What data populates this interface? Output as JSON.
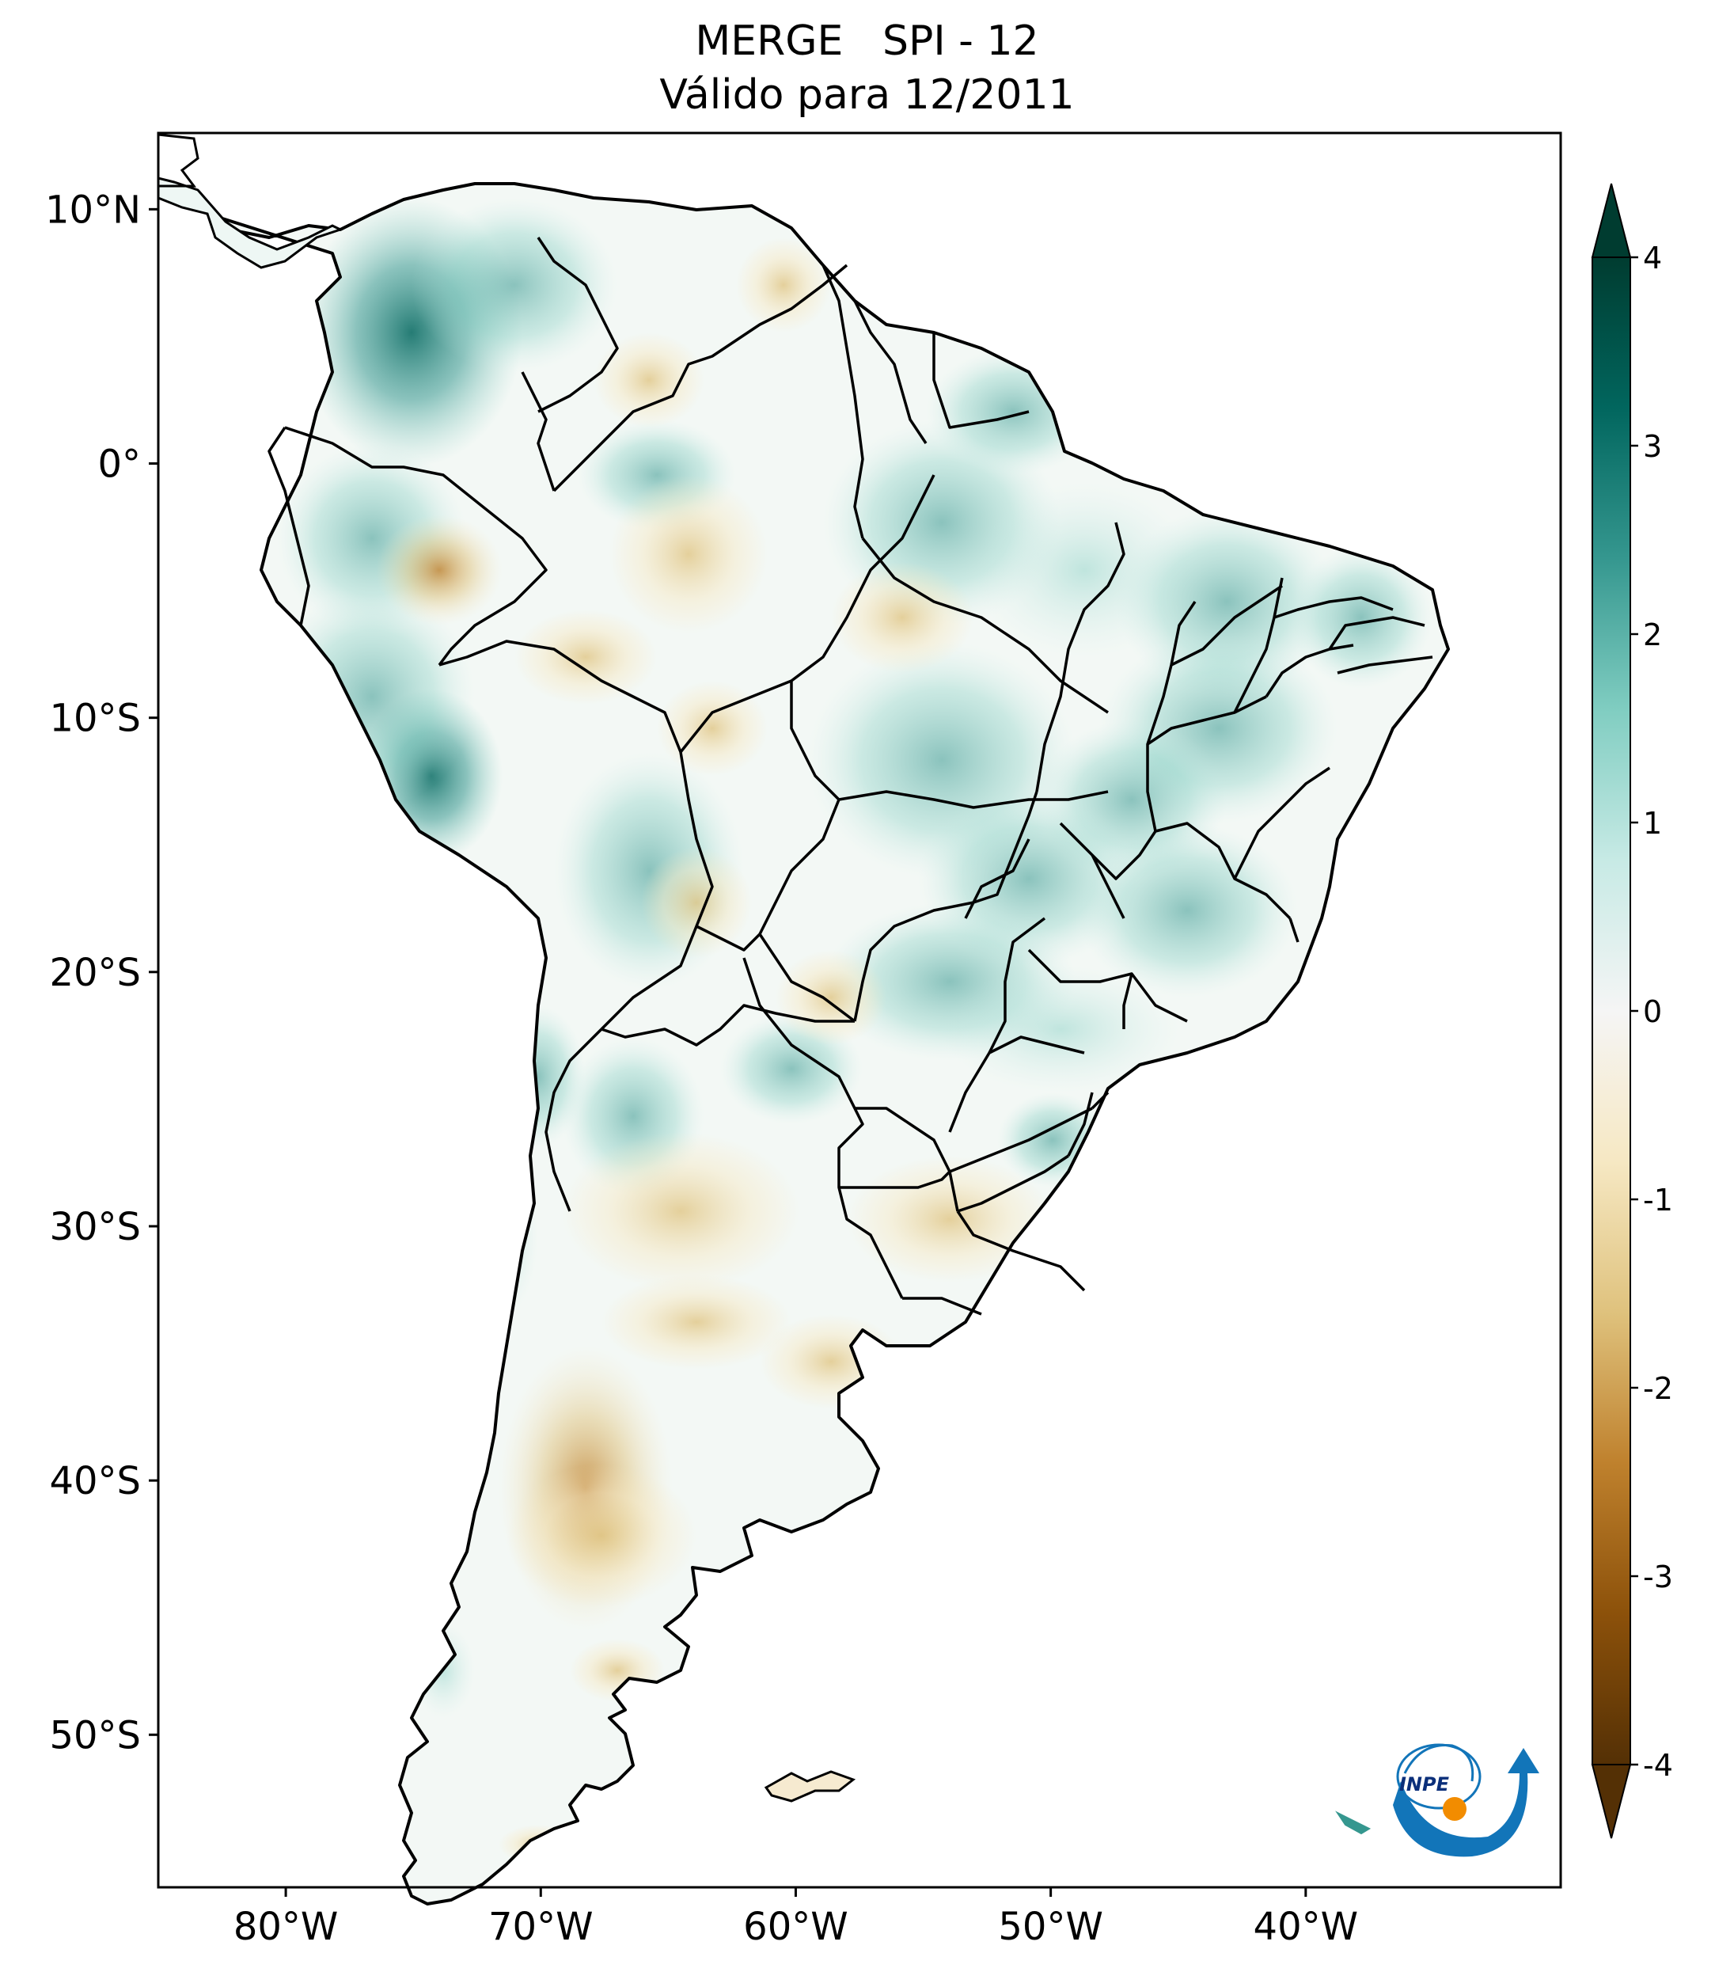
{
  "title": {
    "line1_left": "MERGE",
    "line1_right": "SPI - 12",
    "line2": "Válido para 12/2011"
  },
  "map": {
    "lat_ticks": [
      {
        "value": 10,
        "label": "10°N"
      },
      {
        "value": 0,
        "label": "0°"
      },
      {
        "value": -10,
        "label": "10°S"
      },
      {
        "value": -20,
        "label": "20°S"
      },
      {
        "value": -30,
        "label": "30°S"
      },
      {
        "value": -40,
        "label": "40°S"
      },
      {
        "value": -50,
        "label": "50°S"
      }
    ],
    "lon_ticks": [
      {
        "value": -80,
        "label": "80°W"
      },
      {
        "value": -70,
        "label": "70°W"
      },
      {
        "value": -60,
        "label": "60°W"
      },
      {
        "value": -50,
        "label": "50°W"
      },
      {
        "value": -40,
        "label": "40°W"
      }
    ],
    "extent": {
      "lon_min": -85,
      "lon_max": -30,
      "lat_min": -56,
      "lat_max": 13
    }
  },
  "colorbar": {
    "ticks": [
      {
        "value": 4,
        "label": "4"
      },
      {
        "value": 3,
        "label": "3"
      },
      {
        "value": 2,
        "label": "2"
      },
      {
        "value": 1,
        "label": "1"
      },
      {
        "value": 0,
        "label": "0"
      },
      {
        "value": -1,
        "label": "-1"
      },
      {
        "value": -2,
        "label": "-2"
      },
      {
        "value": -3,
        "label": "-3"
      },
      {
        "value": -4,
        "label": "-4"
      }
    ],
    "range": [
      -4,
      4
    ],
    "extend": "both",
    "colormap": "BrBG",
    "colors": [
      "#543005",
      "#8c510a",
      "#bf812d",
      "#dfc27d",
      "#f6e8c3",
      "#f5f5f5",
      "#c7eae5",
      "#80cdc1",
      "#35978f",
      "#01665e",
      "#003c30"
    ]
  },
  "logo": {
    "text": "INPE",
    "colors": {
      "blue": "#1275b9",
      "orange": "#f28c00"
    }
  }
}
